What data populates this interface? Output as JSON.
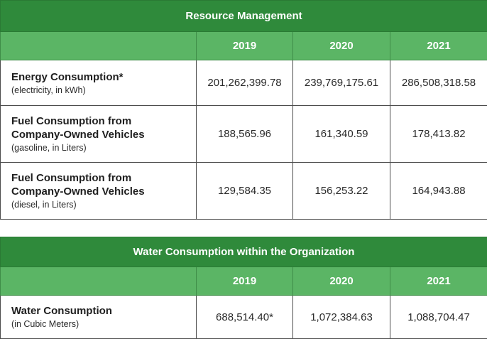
{
  "resource_management": {
    "title": "Resource Management",
    "years": [
      "2019",
      "2020",
      "2021"
    ],
    "rows": [
      {
        "label": "Energy Consumption*",
        "label_line2": "",
        "unit": "(electricity, in kWh)",
        "values": [
          "201,262,399.78",
          "239,769,175.61",
          "286,508,318.58"
        ]
      },
      {
        "label": "Fuel Consumption from",
        "label_line2": "Company-Owned Vehicles",
        "unit": "(gasoline, in Liters)",
        "values": [
          "188,565.96",
          "161,340.59",
          "178,413.82"
        ]
      },
      {
        "label": "Fuel Consumption from",
        "label_line2": "Company-Owned Vehicles",
        "unit": "(diesel, in Liters)",
        "values": [
          "129,584.35",
          "156,253.22",
          "164,943.88"
        ]
      }
    ]
  },
  "water": {
    "title": "Water Consumption within the Organization",
    "years": [
      "2019",
      "2020",
      "2021"
    ],
    "rows": [
      {
        "label": "Water Consumption",
        "unit": "(in Cubic Meters)",
        "values": [
          "688,514.40*",
          "1,072,384.63",
          "1,088,704.47"
        ]
      }
    ]
  },
  "colors": {
    "header_dark": "#2f8a3b",
    "header_light": "#5bb565",
    "border": "#4c4c4c"
  }
}
